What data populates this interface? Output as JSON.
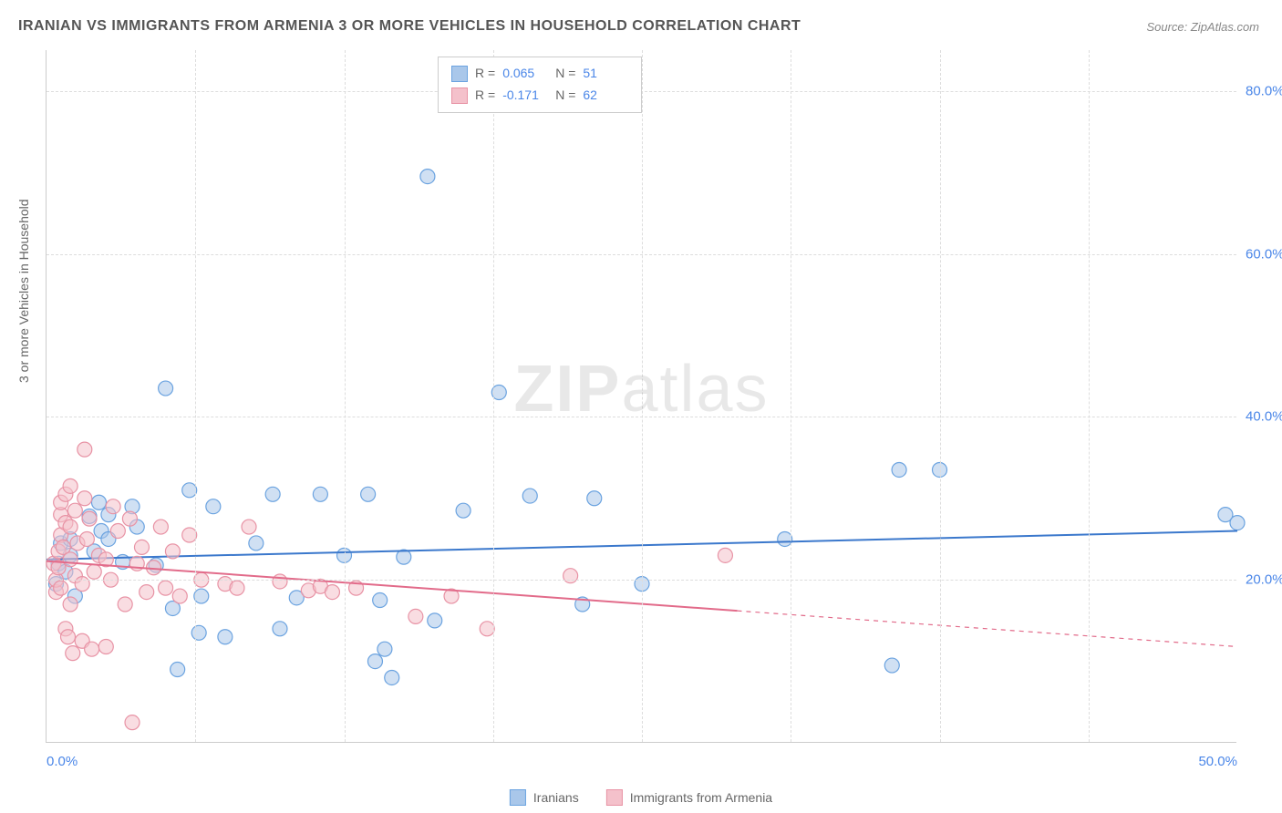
{
  "title": "IRANIAN VS IMMIGRANTS FROM ARMENIA 3 OR MORE VEHICLES IN HOUSEHOLD CORRELATION CHART",
  "source": "Source: ZipAtlas.com",
  "watermark_primary": "ZIP",
  "watermark_secondary": "atlas",
  "ylabel": "3 or more Vehicles in Household",
  "chart": {
    "type": "scatter",
    "xlim": [
      0,
      50
    ],
    "ylim": [
      0,
      85
    ],
    "xticks": [
      0.0,
      50.0
    ],
    "xtick_labels": [
      "0.0%",
      "50.0%"
    ],
    "yticks": [
      20.0,
      40.0,
      60.0,
      80.0
    ],
    "ytick_labels": [
      "20.0%",
      "40.0%",
      "60.0%",
      "80.0%"
    ],
    "x_gridlines": [
      6.25,
      12.5,
      18.75,
      25.0,
      31.25,
      37.5,
      43.75
    ],
    "background_color": "#ffffff",
    "grid_color": "#dddddd",
    "axis_color": "#cccccc",
    "marker_radius": 8,
    "marker_stroke_width": 1.2,
    "line_width": 2,
    "series": [
      {
        "name": "Iranians",
        "color_fill": "#a9c7ea",
        "color_stroke": "#6ba3e0",
        "line_color": "#3b78cc",
        "R": "0.065",
        "N": "51",
        "trend": {
          "x1": 0,
          "y1": 22.5,
          "x2": 50,
          "y2": 26.0
        },
        "dashed_extension": null,
        "points": [
          [
            0.4,
            19.5
          ],
          [
            0.5,
            22.0
          ],
          [
            0.6,
            24.5
          ],
          [
            0.8,
            21.0
          ],
          [
            1.0,
            23.0
          ],
          [
            1.0,
            25.0
          ],
          [
            1.2,
            18.0
          ],
          [
            1.8,
            27.8
          ],
          [
            2.0,
            23.5
          ],
          [
            2.2,
            29.5
          ],
          [
            2.3,
            26.0
          ],
          [
            2.6,
            25.0
          ],
          [
            2.6,
            28.0
          ],
          [
            3.2,
            22.2
          ],
          [
            3.6,
            29.0
          ],
          [
            3.8,
            26.5
          ],
          [
            4.6,
            21.8
          ],
          [
            5.0,
            43.5
          ],
          [
            5.3,
            16.5
          ],
          [
            5.5,
            9.0
          ],
          [
            6.0,
            31.0
          ],
          [
            6.4,
            13.5
          ],
          [
            6.5,
            18.0
          ],
          [
            7.0,
            29.0
          ],
          [
            7.5,
            13.0
          ],
          [
            8.8,
            24.5
          ],
          [
            9.5,
            30.5
          ],
          [
            9.8,
            14.0
          ],
          [
            10.5,
            17.8
          ],
          [
            11.5,
            30.5
          ],
          [
            12.5,
            23.0
          ],
          [
            13.5,
            30.5
          ],
          [
            13.8,
            10.0
          ],
          [
            14.0,
            17.5
          ],
          [
            14.2,
            11.5
          ],
          [
            14.5,
            8.0
          ],
          [
            15.0,
            22.8
          ],
          [
            16.0,
            69.5
          ],
          [
            16.3,
            15.0
          ],
          [
            17.5,
            28.5
          ],
          [
            19.0,
            43.0
          ],
          [
            20.3,
            30.3
          ],
          [
            22.5,
            17.0
          ],
          [
            23.0,
            30.0
          ],
          [
            25.0,
            19.5
          ],
          [
            31.0,
            25.0
          ],
          [
            35.5,
            9.5
          ],
          [
            35.8,
            33.5
          ],
          [
            37.5,
            33.5
          ],
          [
            49.5,
            28.0
          ],
          [
            50.0,
            27.0
          ]
        ]
      },
      {
        "name": "Immigrants from Armenia",
        "color_fill": "#f4c1cb",
        "color_stroke": "#e893a5",
        "line_color": "#e26b8a",
        "R": "-0.171",
        "N": "62",
        "trend": {
          "x1": 0,
          "y1": 22.3,
          "x2": 29,
          "y2": 16.2
        },
        "dashed_extension": {
          "x1": 29,
          "y1": 16.2,
          "x2": 50,
          "y2": 11.8
        },
        "points": [
          [
            0.3,
            22.0
          ],
          [
            0.4,
            18.5
          ],
          [
            0.4,
            20.0
          ],
          [
            0.5,
            21.5
          ],
          [
            0.5,
            23.5
          ],
          [
            0.6,
            19.0
          ],
          [
            0.6,
            25.5
          ],
          [
            0.6,
            28.0
          ],
          [
            0.6,
            29.5
          ],
          [
            0.7,
            24.0
          ],
          [
            0.8,
            14.0
          ],
          [
            0.8,
            27.0
          ],
          [
            0.8,
            30.5
          ],
          [
            0.9,
            13.0
          ],
          [
            1.0,
            17.0
          ],
          [
            1.0,
            22.5
          ],
          [
            1.0,
            26.5
          ],
          [
            1.0,
            31.5
          ],
          [
            1.1,
            11.0
          ],
          [
            1.2,
            20.5
          ],
          [
            1.2,
            28.5
          ],
          [
            1.3,
            24.5
          ],
          [
            1.5,
            12.5
          ],
          [
            1.5,
            19.5
          ],
          [
            1.6,
            30.0
          ],
          [
            1.6,
            36.0
          ],
          [
            1.7,
            25.0
          ],
          [
            1.8,
            27.5
          ],
          [
            1.9,
            11.5
          ],
          [
            2.0,
            21.0
          ],
          [
            2.2,
            23.0
          ],
          [
            2.5,
            11.8
          ],
          [
            2.5,
            22.5
          ],
          [
            2.7,
            20.0
          ],
          [
            2.8,
            29.0
          ],
          [
            3.0,
            26.0
          ],
          [
            3.3,
            17.0
          ],
          [
            3.5,
            27.5
          ],
          [
            3.6,
            2.5
          ],
          [
            3.8,
            22.0
          ],
          [
            4.0,
            24.0
          ],
          [
            4.2,
            18.5
          ],
          [
            4.5,
            21.5
          ],
          [
            4.8,
            26.5
          ],
          [
            5.0,
            19.0
          ],
          [
            5.3,
            23.5
          ],
          [
            5.6,
            18.0
          ],
          [
            6.0,
            25.5
          ],
          [
            6.5,
            20.0
          ],
          [
            7.5,
            19.5
          ],
          [
            8.0,
            19.0
          ],
          [
            8.5,
            26.5
          ],
          [
            9.8,
            19.8
          ],
          [
            11.0,
            18.7
          ],
          [
            11.5,
            19.2
          ],
          [
            12.0,
            18.5
          ],
          [
            13.0,
            19.0
          ],
          [
            15.5,
            15.5
          ],
          [
            17.0,
            18.0
          ],
          [
            18.5,
            14.0
          ],
          [
            22.0,
            20.5
          ],
          [
            28.5,
            23.0
          ]
        ]
      }
    ]
  },
  "typography": {
    "title_fontsize": 16,
    "title_color": "#555555",
    "source_fontsize": 13,
    "source_color": "#888888",
    "tick_fontsize": 15,
    "tick_color": "#4a86e8",
    "ylabel_fontsize": 14,
    "ylabel_color": "#666666",
    "legend_fontsize": 14
  },
  "legend_bottom": [
    {
      "label": "Iranians",
      "fill": "#a9c7ea",
      "stroke": "#6ba3e0"
    },
    {
      "label": "Immigrants from Armenia",
      "fill": "#f4c1cb",
      "stroke": "#e893a5"
    }
  ]
}
